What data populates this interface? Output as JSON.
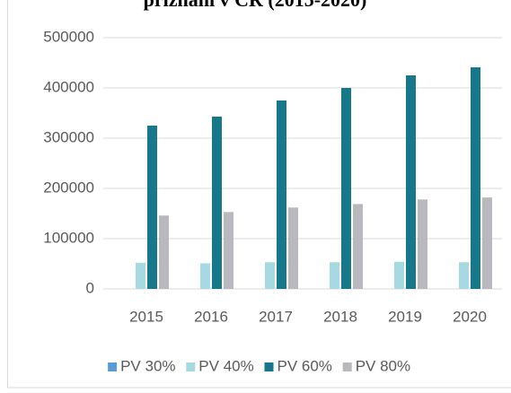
{
  "chart_data": {
    "type": "bar",
    "title": "přiznání v ČR (2015-2020)",
    "categories": [
      "2015",
      "2016",
      "2017",
      "2018",
      "2019",
      "2020"
    ],
    "series": [
      {
        "name": "PV 30%",
        "color": "#5b9bd5",
        "values": [
          0,
          0,
          0,
          0,
          0,
          0
        ]
      },
      {
        "name": "PV 40%",
        "color": "#a6d9e2",
        "values": [
          52000,
          51000,
          53000,
          53000,
          54000,
          53000
        ]
      },
      {
        "name": "PV 60%",
        "color": "#16788a",
        "values": [
          325000,
          343000,
          375000,
          400000,
          425000,
          441000
        ]
      },
      {
        "name": "PV 80%",
        "color": "#bab8bf",
        "values": [
          146000,
          153000,
          162000,
          169000,
          178000,
          182000
        ]
      }
    ],
    "ylim": [
      0,
      500000
    ],
    "yticks": [
      0,
      100000,
      200000,
      300000,
      400000,
      500000
    ],
    "grid": true,
    "legend": "bottom"
  }
}
